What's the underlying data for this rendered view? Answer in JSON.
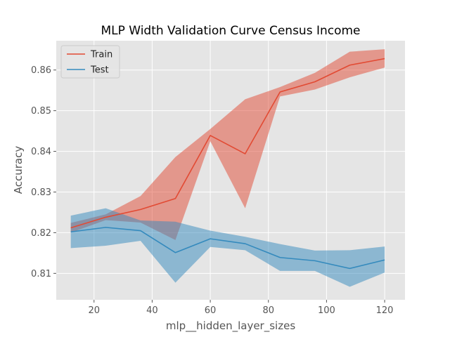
{
  "chart_data": {
    "type": "line",
    "title": "MLP Width Validation Curve Census Income",
    "xlabel": "mlp__hidden_layer_sizes",
    "ylabel": "Accuracy",
    "xlim": [
      7,
      127
    ],
    "ylim": [
      0.8035,
      0.8672
    ],
    "xticks": [
      20,
      40,
      60,
      80,
      100,
      120
    ],
    "yticks": [
      0.81,
      0.82,
      0.83,
      0.84,
      0.85,
      0.86
    ],
    "x": [
      12,
      24,
      36,
      48,
      60,
      72,
      84,
      96,
      108,
      120
    ],
    "series": [
      {
        "name": "Train",
        "color": "#E24A33",
        "values": [
          0.8212,
          0.8238,
          0.8257,
          0.8284,
          0.8439,
          0.8394,
          0.8546,
          0.8571,
          0.8612,
          0.8628
        ],
        "lower": [
          0.82,
          0.8231,
          0.8225,
          0.8182,
          0.8425,
          0.826,
          0.8535,
          0.8552,
          0.8582,
          0.8606
        ],
        "upper": [
          0.8224,
          0.8245,
          0.829,
          0.8386,
          0.8455,
          0.8528,
          0.8558,
          0.8593,
          0.8645,
          0.8651
        ]
      },
      {
        "name": "Test",
        "color": "#348ABD",
        "values": [
          0.8202,
          0.8213,
          0.8205,
          0.8151,
          0.8185,
          0.8173,
          0.8139,
          0.8131,
          0.8112,
          0.8133
        ],
        "lower": [
          0.8162,
          0.8168,
          0.818,
          0.8077,
          0.8165,
          0.8157,
          0.8106,
          0.8106,
          0.8067,
          0.8102
        ],
        "upper": [
          0.8242,
          0.826,
          0.823,
          0.8227,
          0.8205,
          0.819,
          0.8172,
          0.8156,
          0.8157,
          0.8166
        ]
      }
    ],
    "grid": true,
    "legend_position": "top-left"
  }
}
